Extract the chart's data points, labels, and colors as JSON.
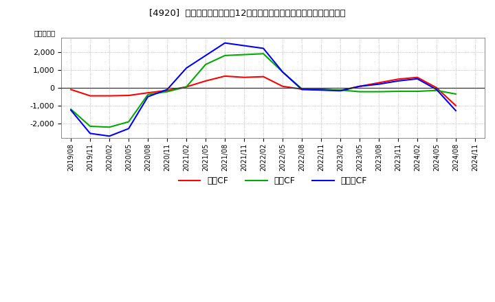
{
  "title": "[4920]  キャッシュフローの12か月移動合計の対前年同期増減額の推移",
  "ylabel": "（百万円）",
  "x_labels": [
    "2019/08",
    "2019/11",
    "2020/02",
    "2020/05",
    "2020/08",
    "2020/11",
    "2021/02",
    "2021/05",
    "2021/08",
    "2021/11",
    "2022/02",
    "2022/05",
    "2022/08",
    "2022/11",
    "2023/02",
    "2023/05",
    "2023/08",
    "2023/11",
    "2024/02",
    "2024/05",
    "2024/08",
    "2024/11"
  ],
  "operating_cf": [
    -100,
    -450,
    -450,
    -430,
    -280,
    -150,
    50,
    380,
    650,
    580,
    620,
    80,
    -80,
    -80,
    -150,
    80,
    280,
    480,
    580,
    0,
    -1000,
    null
  ],
  "investing_cf": [
    -1200,
    -2150,
    -2200,
    -1900,
    -380,
    -220,
    50,
    1300,
    1800,
    1850,
    1900,
    880,
    -60,
    -110,
    -130,
    -220,
    -220,
    -200,
    -200,
    -150,
    -350,
    null
  ],
  "free_cf": [
    -1250,
    -2550,
    -2700,
    -2280,
    -500,
    -100,
    1100,
    1800,
    2500,
    2350,
    2200,
    880,
    -100,
    -130,
    -170,
    80,
    200,
    380,
    500,
    -100,
    -1280,
    null
  ],
  "operating_color": "#ff0000",
  "investing_color": "#00aa00",
  "free_cf_color": "#0000ff",
  "ylim": [
    -2800,
    2800
  ],
  "yticks": [
    -2000,
    -1000,
    0,
    1000,
    2000
  ],
  "bg_color": "#ffffff",
  "plot_bg_color": "#ffffff",
  "legend_labels": [
    "営業CF",
    "投資CF",
    "フリーCF"
  ],
  "zero_line_color": "#333333",
  "grid_color": "#aaaaaa"
}
